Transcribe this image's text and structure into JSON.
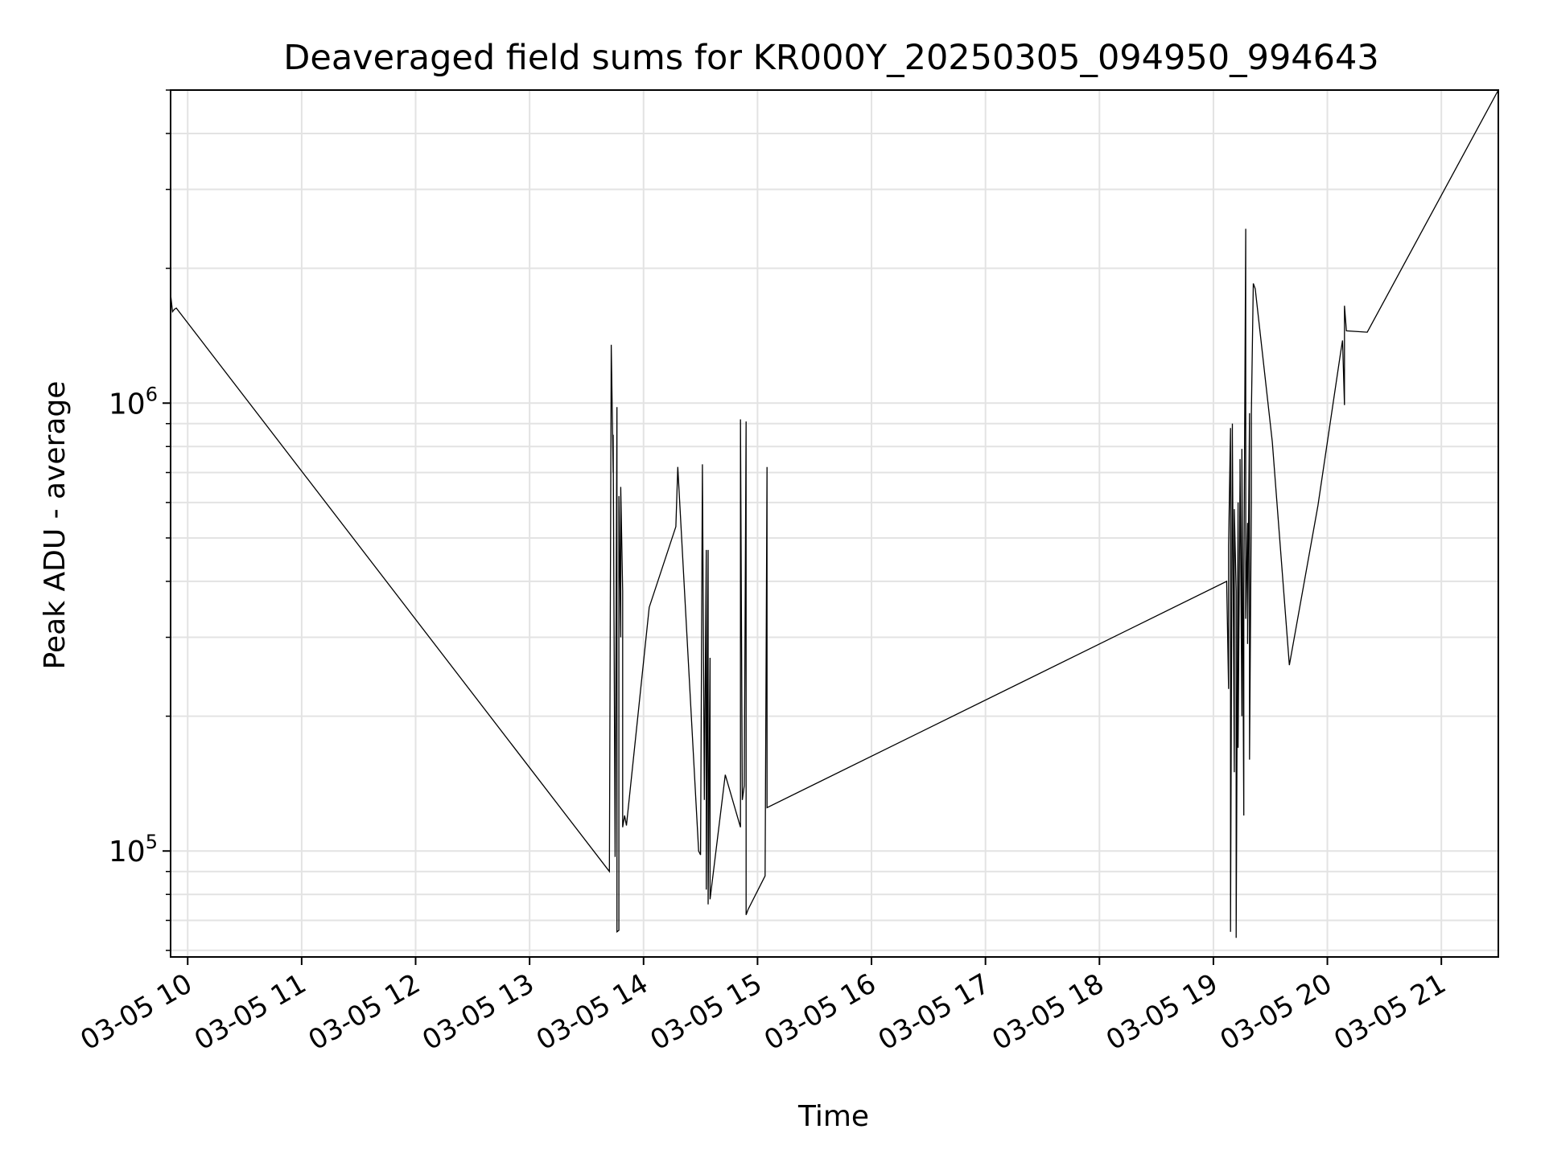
{
  "chart_data": {
    "type": "line",
    "title": "Deaveraged field sums for KR000Y_20250305_094950_994643",
    "xlabel": "Time",
    "ylabel": "Peak ADU - average",
    "y_scale": "log",
    "ylim": [
      58000,
      5000000
    ],
    "xlim": [
      "2025-03-05 09:51",
      "2025-03-05 21:30"
    ],
    "grid": true,
    "x_tick_labels": [
      "03-05 10",
      "03-05 11",
      "03-05 12",
      "03-05 13",
      "03-05 14",
      "03-05 15",
      "03-05 16",
      "03-05 17",
      "03-05 18",
      "03-05 19",
      "03-05 20",
      "03-05 21"
    ],
    "y_tick_labels": [
      {
        "value": 100000,
        "base": "10",
        "exponent": "5"
      },
      {
        "value": 1000000,
        "base": "10",
        "exponent": "6"
      }
    ],
    "line_color": "#000000",
    "series": [
      {
        "x": [
          "2025-03-05 09:51",
          "2025-03-05 09:52",
          "2025-03-05 09:53",
          "2025-03-05 09:54",
          "2025-03-05 13:42",
          "2025-03-05 13:43",
          "2025-03-05 13:44",
          "2025-03-05 13:44",
          "2025-03-05 13:45",
          "2025-03-05 13:46",
          "2025-03-05 13:46",
          "2025-03-05 13:47",
          "2025-03-05 13:47",
          "2025-03-05 13:48",
          "2025-03-05 13:48",
          "2025-03-05 13:49",
          "2025-03-05 13:49",
          "2025-03-05 13:50",
          "2025-03-05 13:51",
          "2025-03-05 14:03",
          "2025-03-05 14:17",
          "2025-03-05 14:18",
          "2025-03-05 14:29",
          "2025-03-05 14:30",
          "2025-03-05 14:31",
          "2025-03-05 14:32",
          "2025-03-05 14:33",
          "2025-03-05 14:33",
          "2025-03-05 14:34",
          "2025-03-05 14:34",
          "2025-03-05 14:35",
          "2025-03-05 14:35",
          "2025-03-05 14:43",
          "2025-03-05 14:51",
          "2025-03-05 14:51",
          "2025-03-05 14:52",
          "2025-03-05 14:53",
          "2025-03-05 14:54",
          "2025-03-05 14:54",
          "2025-03-05 14:55",
          "2025-03-05 15:04",
          "2025-03-05 15:05",
          "2025-03-05 15:05",
          "2025-03-05 19:07",
          "2025-03-05 19:08",
          "2025-03-05 19:08",
          "2025-03-05 19:09",
          "2025-03-05 19:09",
          "2025-03-05 19:10",
          "2025-03-05 19:10",
          "2025-03-05 19:11",
          "2025-03-05 19:11",
          "2025-03-05 19:12",
          "2025-03-05 19:12",
          "2025-03-05 19:13",
          "2025-03-05 19:13",
          "2025-03-05 19:14",
          "2025-03-05 19:14",
          "2025-03-05 19:15",
          "2025-03-05 19:15",
          "2025-03-05 19:16",
          "2025-03-05 19:16",
          "2025-03-05 19:17",
          "2025-03-05 19:17",
          "2025-03-05 19:18",
          "2025-03-05 19:18",
          "2025-03-05 19:19",
          "2025-03-05 19:19",
          "2025-03-05 19:20",
          "2025-03-05 19:20",
          "2025-03-05 19:21",
          "2025-03-05 19:22",
          "2025-03-05 19:31",
          "2025-03-05 19:40",
          "2025-03-05 19:55",
          "2025-03-05 20:07",
          "2025-03-05 20:08",
          "2025-03-05 20:09",
          "2025-03-05 20:09",
          "2025-03-05 20:10",
          "2025-03-05 20:21",
          "2025-03-05 21:30"
        ],
        "y": [
          1750000,
          1600000,
          1620000,
          1630000,
          90000,
          1350000,
          700000,
          850000,
          97000,
          980000,
          66000,
          66500,
          620000,
          300000,
          650000,
          380000,
          113000,
          120000,
          114000,
          350000,
          530000,
          720000,
          100000,
          98000,
          730000,
          130000,
          470000,
          82000,
          470000,
          76000,
          270000,
          78000,
          148000,
          113000,
          920000,
          130000,
          140000,
          910000,
          72000,
          74000,
          88000,
          720000,
          125000,
          400000,
          230000,
          480000,
          880000,
          66000,
          900000,
          850000,
          150000,
          580000,
          380000,
          64000,
          600000,
          170000,
          680000,
          750000,
          200000,
          790000,
          120000,
          380000,
          2450000,
          330000,
          540000,
          290000,
          950000,
          160000,
          600000,
          950000,
          1850000,
          1800000,
          820000,
          260000,
          590000,
          1300000,
          1380000,
          990000,
          1650000,
          1450000,
          1440000,
          5000000
        ]
      }
    ]
  }
}
